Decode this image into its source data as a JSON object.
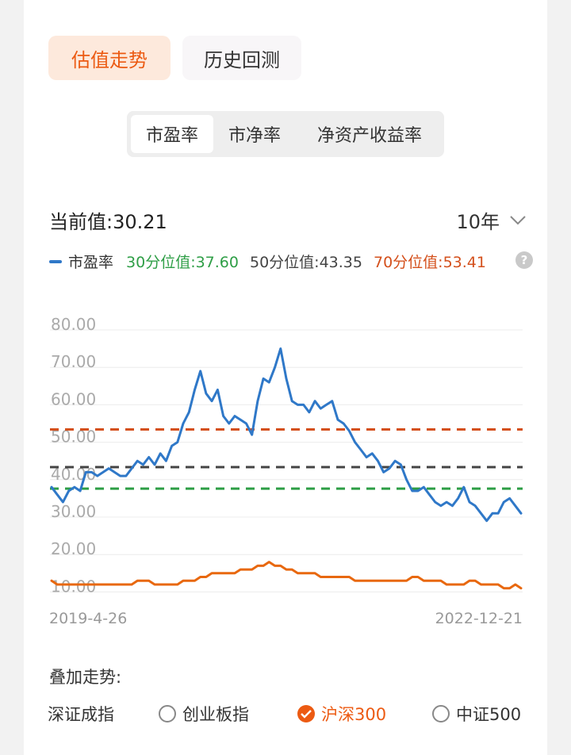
{
  "tabs": {
    "active": "估值走势",
    "inactive": "历史回测"
  },
  "segments": [
    "市盈率",
    "市净率",
    "净资产收益率"
  ],
  "current": {
    "label": "当前值:",
    "value": "30.21"
  },
  "range": {
    "value": "10年"
  },
  "legend": {
    "series": "市盈率",
    "p30": "30分位值:37.60",
    "p50": "50分位值:43.35",
    "p70": "70分位值:53.41",
    "help": "?"
  },
  "colors": {
    "accent": "#ec5a12",
    "series": "#2f78c8",
    "index": "#e8680f",
    "p30": "#2e9e46",
    "p50": "#444444",
    "p70": "#d4501c"
  },
  "chart_data": {
    "type": "line",
    "x_start": "2019-4-26",
    "x_end": "2022-12-21",
    "ylim": [
      0,
      80
    ],
    "y_ticks": [
      "80.00",
      "70.00",
      "60.00",
      "50.00",
      "40.00",
      "30.00",
      "20.00",
      "10.00"
    ],
    "y_tick_values": [
      80,
      70,
      60,
      50,
      40,
      30,
      20,
      10
    ],
    "reference_lines": [
      {
        "name": "30分位值",
        "value": 37.6
      },
      {
        "name": "50分位值",
        "value": 43.35
      },
      {
        "name": "70分位值",
        "value": 53.41
      }
    ],
    "series": [
      {
        "name": "市盈率",
        "values": [
          38,
          36,
          34,
          37,
          38,
          37,
          42,
          42,
          41,
          42,
          43,
          42,
          41,
          41,
          43,
          45,
          44,
          46,
          44,
          47,
          45,
          49,
          50,
          55,
          58,
          64,
          69,
          63,
          61,
          64,
          57,
          55,
          57,
          56,
          55,
          52,
          61,
          67,
          66,
          70,
          75,
          67,
          61,
          60,
          60,
          58,
          61,
          59,
          60,
          61,
          56,
          55,
          53,
          50,
          48,
          46,
          47,
          45,
          42,
          43,
          45,
          44,
          40,
          37,
          37,
          38,
          36,
          34,
          33,
          34,
          33,
          35,
          38,
          34,
          33,
          31,
          29,
          31,
          31,
          34,
          35,
          33,
          31
        ]
      },
      {
        "name": "沪深300",
        "values": [
          13,
          12,
          12,
          12,
          12,
          12,
          12,
          12,
          12,
          12,
          12,
          12,
          12,
          12,
          12,
          13,
          13,
          13,
          12,
          12,
          12,
          12,
          12,
          13,
          13,
          13,
          14,
          14,
          15,
          15,
          15,
          15,
          15,
          16,
          16,
          16,
          17,
          17,
          18,
          17,
          17,
          16,
          16,
          15,
          15,
          15,
          15,
          14,
          14,
          14,
          14,
          14,
          14,
          13,
          13,
          13,
          13,
          13,
          13,
          13,
          13,
          13,
          13,
          14,
          14,
          13,
          13,
          13,
          13,
          12,
          12,
          12,
          12,
          13,
          13,
          12,
          12,
          12,
          12,
          11,
          11,
          12,
          11
        ]
      }
    ]
  },
  "overlay": {
    "title": "叠加走势:",
    "options": [
      {
        "label": "深证成指",
        "checked": false,
        "radio": false
      },
      {
        "label": "创业板指",
        "checked": false,
        "radio": true
      },
      {
        "label": "沪深300",
        "checked": true,
        "radio": true
      },
      {
        "label": "中证500",
        "checked": false,
        "radio": true
      }
    ]
  }
}
